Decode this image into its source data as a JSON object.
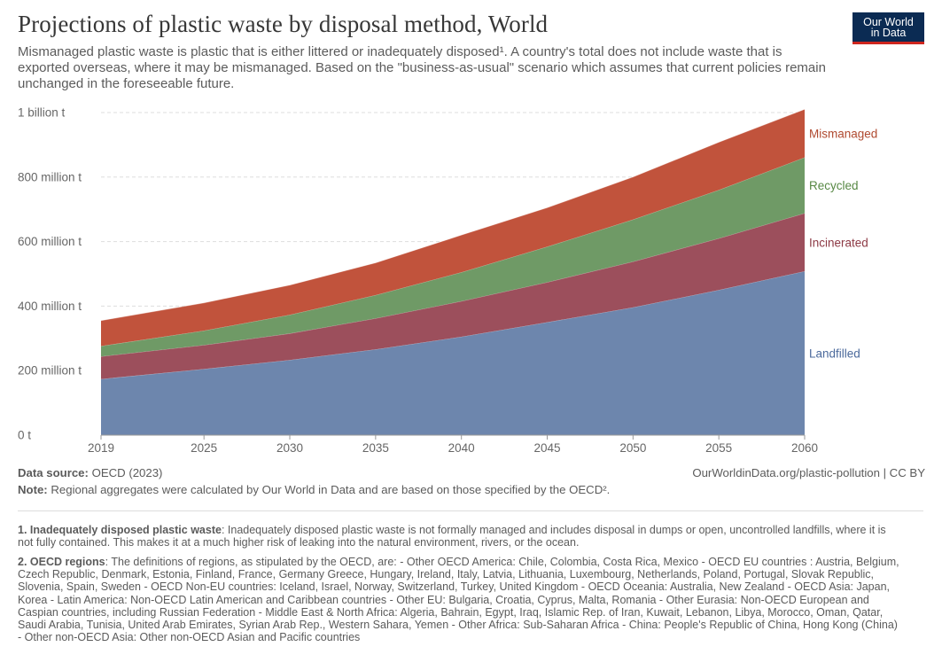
{
  "header": {
    "title": "Projections of plastic waste by disposal method, World",
    "subtitle": "Mismanaged plastic waste is plastic that is either littered or inadequately disposed¹. A country's total does not include waste that is exported overseas, where it may be mismanaged. Based on the \"business-as-usual\" scenario which assumes that current policies remain unchanged in the foreseeable future.",
    "logo_line1": "Our World",
    "logo_line2": "in Data"
  },
  "footer": {
    "source_label": "Data source:",
    "source_value": "OECD (2023)",
    "url": "OurWorldinData.org/plastic-pollution | CC BY",
    "note_label": "Note:",
    "note_value": "Regional aggregates were calculated by Our World in Data and are based on those specified by the OECD².",
    "fn1_label": "1. Inadequately disposed plastic waste",
    "fn1_text": ": Inadequately disposed plastic waste is not formally managed and includes disposal in dumps or open, uncontrolled landfills, where it is not fully contained. This makes it at a much higher risk of leaking into the natural environment, rivers, or the ocean.",
    "fn2_label": "2. OECD regions",
    "fn2_text": ": The definitions of regions, as stipulated by the OECD, are: - Other OECD America: Chile, Colombia, Costa Rica, Mexico - OECD EU countries : Austria, Belgium, Czech Republic, Denmark, Estonia, Finland, France, Germany Greece, Hungary, Ireland, Italy, Latvia, Lithuania, Luxembourg, Netherlands, Poland, Portugal, Slovak Republic, Slovenia, Spain, Sweden - OECD Non-EU countries: Iceland, Israel, Norway, Switzerland, Turkey, United Kingdom - OECD Oceania: Australia, New Zealand - OECD Asia: Japan, Korea - Latin America: Non-OECD Latin American and Caribbean countries - Other EU: Bulgaria, Croatia, Cyprus, Malta, Romania - Other Eurasia: Non-OECD European and Caspian countries, including Russian Federation - Middle East & North Africa: Algeria, Bahrain, Egypt, Iraq, Islamic Rep. of Iran, Kuwait, Lebanon, Libya, Morocco, Oman, Qatar, Saudi Arabia, Tunisia, United Arab Emirates, Syrian Arab Rep., Western Sahara, Yemen - Other Africa: Sub-Saharan Africa - China: People's Republic of China, Hong Kong (China) - Other non-OECD Asia: Other non-OECD Asian and Pacific countries"
  },
  "chart_data": {
    "type": "area",
    "stacked": true,
    "x": [
      2019,
      2025,
      2030,
      2035,
      2040,
      2045,
      2050,
      2055,
      2060
    ],
    "x_ticks": [
      "2019",
      "2025",
      "2030",
      "2035",
      "2040",
      "2045",
      "2050",
      "2055",
      "2060"
    ],
    "y_ticks": [
      {
        "value": 0,
        "label": "0 t"
      },
      {
        "value": 200000000,
        "label": "200 million t"
      },
      {
        "value": 400000000,
        "label": "400 million t"
      },
      {
        "value": 600000000,
        "label": "600 million t"
      },
      {
        "value": 800000000,
        "label": "800 million t"
      },
      {
        "value": 1000000000,
        "label": "1 billion t"
      }
    ],
    "ylim": [
      0,
      1000000000
    ],
    "grid": "horizontal dashed",
    "legend": "labels at right end of series",
    "series": [
      {
        "name": "Landfilled",
        "color": "#6d86ad",
        "values": [
          174000000,
          205000000,
          233000000,
          266000000,
          305000000,
          350000000,
          396000000,
          450000000,
          508000000
        ]
      },
      {
        "name": "Incinerated",
        "color": "#9c4f5c",
        "values": [
          70000000,
          74000000,
          82000000,
          96000000,
          110000000,
          124000000,
          142000000,
          160000000,
          180000000
        ]
      },
      {
        "name": "Recycled",
        "color": "#6f9a66",
        "values": [
          32000000,
          45000000,
          58000000,
          72000000,
          90000000,
          110000000,
          130000000,
          150000000,
          173000000
        ]
      },
      {
        "name": "Mismanaged",
        "color": "#c1533c",
        "values": [
          79000000,
          86000000,
          92000000,
          100000000,
          115000000,
          121000000,
          132000000,
          148000000,
          149000000
        ]
      }
    ],
    "label_colors": {
      "Landfilled": "#4c6a9c",
      "Incinerated": "#8d3a45",
      "Recycled": "#578844",
      "Mismanaged": "#b04a30"
    }
  }
}
